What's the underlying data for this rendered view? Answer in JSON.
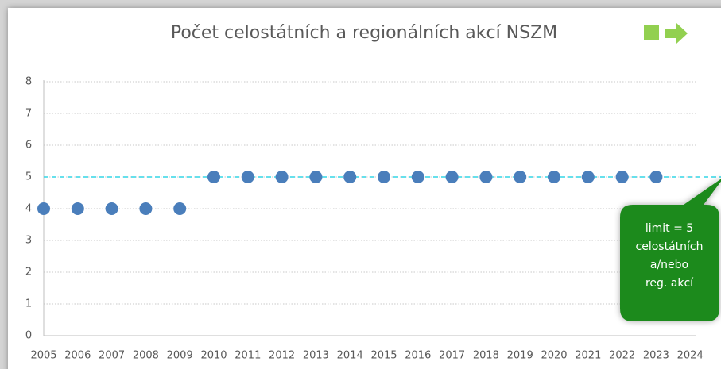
{
  "chart_data": {
    "type": "scatter",
    "title": "Počet celostátních a regionálních akcí NSZM",
    "categories": [
      "2005",
      "2006",
      "2007",
      "2008",
      "2009",
      "2010",
      "2011",
      "2012",
      "2013",
      "2014",
      "2015",
      "2016",
      "2017",
      "2018",
      "2019",
      "2020",
      "2021",
      "2022",
      "2023",
      "2024"
    ],
    "values": [
      4,
      4,
      4,
      4,
      4,
      5,
      5,
      5,
      5,
      5,
      5,
      5,
      5,
      5,
      5,
      5,
      5,
      5,
      5,
      null
    ],
    "color": "#4a7ebb",
    "ylim": [
      0,
      8
    ],
    "yticks": [
      0,
      1,
      2,
      3,
      4,
      5,
      6,
      7,
      8
    ],
    "grid": true,
    "reference_line": 5,
    "reference_color": "#33d6e6",
    "annotation": {
      "lines": [
        "limit = 5",
        "celostátních",
        "a/nebo",
        "reg. akcí"
      ],
      "color": "#1e8a1e"
    }
  }
}
